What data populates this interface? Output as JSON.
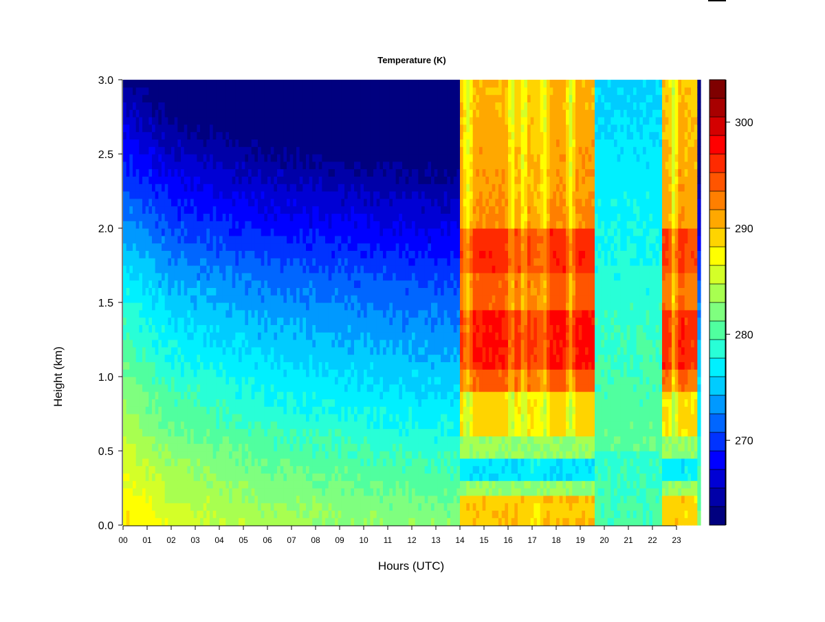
{
  "chart_data": {
    "type": "heatmap",
    "title": "Temperature (K)",
    "xlabel": "Hours (UTC)",
    "ylabel": "Height (km)",
    "xlim": [
      0,
      24
    ],
    "ylim": [
      0.0,
      3.0
    ],
    "x_ticks": [
      "00",
      "01",
      "02",
      "03",
      "04",
      "05",
      "06",
      "07",
      "08",
      "09",
      "10",
      "11",
      "12",
      "13",
      "14",
      "15",
      "16",
      "17",
      "18",
      "19",
      "20",
      "21",
      "22",
      "23"
    ],
    "y_ticks": [
      "0.0",
      "0.5",
      "1.0",
      "1.5",
      "2.0",
      "2.5",
      "3.0"
    ],
    "colorbar": {
      "min": 262,
      "max": 304,
      "ticks": [
        "270",
        "280",
        "290",
        "300"
      ],
      "colors": [
        "#00007f",
        "#0000a8",
        "#0000d4",
        "#0000ff",
        "#0033ff",
        "#0066ff",
        "#0099ff",
        "#00ccff",
        "#00f0ff",
        "#28ffd7",
        "#50ff9f",
        "#7fff7f",
        "#a8ff50",
        "#d4ff28",
        "#ffff00",
        "#ffd400",
        "#ffa800",
        "#ff7f00",
        "#ff5500",
        "#ff2a00",
        "#ff0000",
        "#d40000",
        "#a80000",
        "#7f0000"
      ]
    },
    "surface_temperature_by_hour": [
      {
        "hour": 0,
        "T": 289
      },
      {
        "hour": 1,
        "T": 287.5
      },
      {
        "hour": 2,
        "T": 286
      },
      {
        "hour": 4,
        "T": 285
      },
      {
        "hour": 6,
        "T": 284
      },
      {
        "hour": 9,
        "T": 283
      },
      {
        "hour": 13.9,
        "T": 283
      },
      {
        "hour": 14,
        "T": 288
      },
      {
        "hour": 19.5,
        "T": 288
      },
      {
        "hour": 19.6,
        "T": 279
      },
      {
        "hour": 22.5,
        "T": 279
      },
      {
        "hour": 23.9,
        "T": 288
      }
    ],
    "notes_visible": "none"
  }
}
